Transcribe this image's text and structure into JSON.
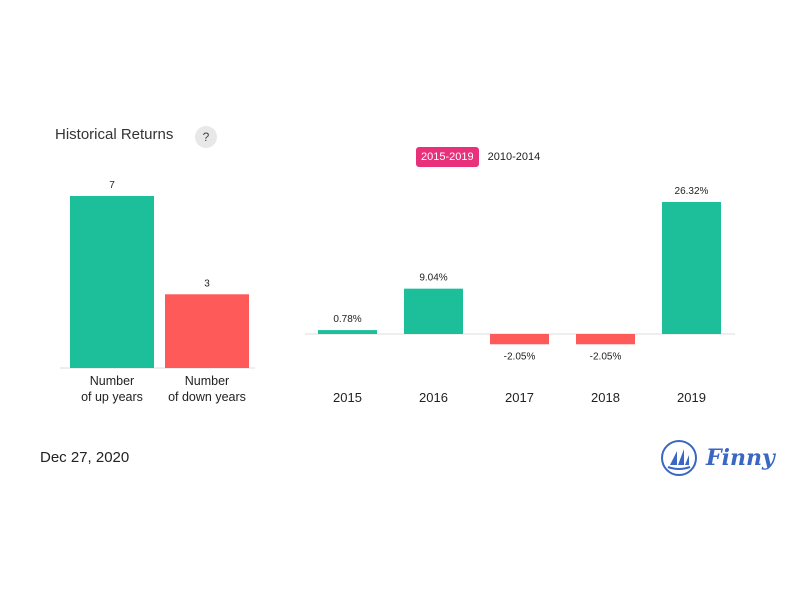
{
  "header": {
    "title": "Historical Returns",
    "help_label": "?"
  },
  "tabs": [
    {
      "label": "2015-2019",
      "active": true
    },
    {
      "label": "2010-2014",
      "active": false
    }
  ],
  "colors": {
    "up": "#1dbf9b",
    "down": "#ff5a5a",
    "accent": "#e8317a",
    "axis": "#dddddd"
  },
  "chart_data": [
    {
      "type": "bar",
      "categories": [
        "Number\nof up years",
        "Number\nof down years"
      ],
      "values": [
        7,
        3
      ],
      "data_labels": [
        "7",
        "3"
      ],
      "ylim": [
        0,
        7
      ]
    },
    {
      "type": "bar",
      "categories": [
        "2015",
        "2016",
        "2017",
        "2018",
        "2019"
      ],
      "values": [
        0.78,
        9.04,
        -2.05,
        -2.05,
        26.32
      ],
      "data_labels": [
        "0.78%",
        "9.04%",
        "-2.05%",
        "-2.05%",
        "26.32%"
      ],
      "ylim": [
        -2.05,
        26.32
      ]
    }
  ],
  "footer": {
    "date": "Dec 27, 2020",
    "logo_text": "Finny"
  }
}
